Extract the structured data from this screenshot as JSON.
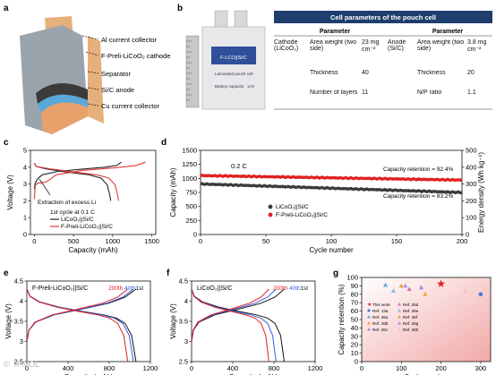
{
  "panel_a": {
    "label": "a",
    "callouts": [
      "Al current collector",
      "F-Preli-LiCoO₂ cathode",
      "Separator",
      "Si/C anode",
      "Cu current collector"
    ],
    "colors": {
      "case": "#9aa4ad",
      "cathode": "#3b3b3b",
      "separator": "#5aa8d8",
      "anode": "#e9a06a",
      "tab": "#e6b07c"
    }
  },
  "panel_b": {
    "label": "b",
    "cell_label_1": "F-LCO||Si/C",
    "cell_label_2": "Laminated pouch cell",
    "cell_label_3": "Battery capacity:",
    "cell_label_4": "1Ah",
    "table": {
      "title": "Cell parameters of the pouch cell",
      "headers": [
        "",
        "Parameter",
        "",
        "",
        "Parameter",
        ""
      ],
      "cathode": "Cathode (LiCoO₂)",
      "anode": "Anode (Si/C)",
      "rows": [
        {
          "p1": "Area weight (two side)",
          "v1": "23 mg cm⁻²",
          "p2": "Area weight (two side)",
          "v2": "3.8 mg cm⁻²"
        },
        {
          "p1": "Thickness",
          "v1": "40",
          "p2": "Thickness",
          "v2": "20"
        },
        {
          "p1": "Number of layers",
          "v1": "11",
          "p2": "N/P ratio",
          "v2": "1.1"
        }
      ]
    }
  },
  "chart_data": [
    {
      "panel": "c",
      "type": "line",
      "xlabel": "Capacity (mAh)",
      "ylabel": "Voltage (V)",
      "xlim": [
        -50,
        1550
      ],
      "ylim": [
        0,
        5
      ],
      "xticks": [
        0,
        500,
        1000,
        1500
      ],
      "yticks": [
        0,
        0.5,
        1,
        1.5,
        2,
        2.5,
        3,
        3.5,
        4,
        4.5,
        5
      ],
      "annotation": "Extraction of excess Li",
      "legend_title": "1st cycle at 0.1 C",
      "series": [
        {
          "name": "LiCoO₂||Si/C",
          "color": "#222222",
          "charge": [
            [
              0,
              2.7
            ],
            [
              10,
              3.05
            ],
            [
              40,
              3.3
            ],
            [
              100,
              3.55
            ],
            [
              300,
              3.75
            ],
            [
              600,
              3.88
            ],
            [
              900,
              4.0
            ],
            [
              1050,
              4.1
            ],
            [
              1110,
              4.3
            ]
          ],
          "discharge": [
            [
              0,
              4.25
            ],
            [
              20,
              4.05
            ],
            [
              150,
              3.9
            ],
            [
              400,
              3.72
            ],
            [
              700,
              3.55
            ],
            [
              850,
              3.35
            ],
            [
              930,
              2.95
            ],
            [
              965,
              2.3
            ],
            [
              975,
              2.0
            ]
          ]
        },
        {
          "name": "F-Preli-LiCoO₂||Si/C",
          "color": "#e23b3b",
          "charge": [
            [
              0,
              2.1
            ],
            [
              10,
              2.9
            ],
            [
              40,
              3.05
            ],
            [
              100,
              3.08
            ],
            [
              150,
              3.12
            ],
            [
              190,
              3.25
            ],
            [
              280,
              3.55
            ],
            [
              600,
              3.8
            ],
            [
              1000,
              3.95
            ],
            [
              1300,
              4.1
            ],
            [
              1420,
              4.3
            ]
          ],
          "discharge": [
            [
              0,
              4.25
            ],
            [
              20,
              4.05
            ],
            [
              200,
              3.9
            ],
            [
              500,
              3.72
            ],
            [
              800,
              3.55
            ],
            [
              950,
              3.35
            ],
            [
              1030,
              2.95
            ],
            [
              1065,
              2.3
            ],
            [
              1075,
              2.0
            ]
          ]
        }
      ]
    },
    {
      "panel": "d",
      "type": "scatter",
      "title": "0.2 C",
      "xlabel": "Cycle number",
      "ylabel": "Capacity (mAh)",
      "ylabel_right": "Energy density (Wh kg⁻¹)",
      "xlim": [
        0,
        200
      ],
      "ylim": [
        0,
        1500
      ],
      "ylim_right": [
        0,
        500
      ],
      "xticks": [
        0,
        50,
        100,
        150,
        200
      ],
      "yticks": [
        0,
        250,
        500,
        750,
        1000,
        1250,
        1500
      ],
      "yticks_right": [
        0,
        100,
        200,
        300,
        400,
        500
      ],
      "annotations": [
        "Capacity retention = 92.4%",
        "Capacity retention = 83.2%"
      ],
      "series": [
        {
          "name": "LiCoO₂||Si/C",
          "color": "#3a3a3a",
          "start": 900,
          "end": 749
        },
        {
          "name": "F-Preli-LiCoO₂||Si/C",
          "color": "#e02020",
          "start": 1050,
          "end": 970
        }
      ]
    },
    {
      "panel": "e",
      "type": "line",
      "title": "F-Preli-LiCoO₂||Si/C",
      "xlabel": "Capacity (mAh)",
      "ylabel": "Voltage (V)",
      "xlim": [
        0,
        1200
      ],
      "ylim": [
        2.5,
        4.5
      ],
      "xticks": [
        0,
        400,
        800,
        1200
      ],
      "yticks": [
        2.5,
        2.75,
        3,
        3.25,
        3.5,
        3.75,
        4,
        4.25,
        4.5
      ],
      "cycle_labels": [
        "200th",
        "40th",
        "1st"
      ],
      "series": [
        {
          "name": "1st",
          "color": "#111111",
          "cap": 1060
        },
        {
          "name": "40th",
          "color": "#3a5be0",
          "cap": 1035
        },
        {
          "name": "200th",
          "color": "#e02020",
          "cap": 980
        }
      ]
    },
    {
      "panel": "f",
      "type": "line",
      "title": "LiCoO₂||Si/C",
      "xlabel": "Capacity (mAh)",
      "ylabel": "Voltage (V)",
      "xlim": [
        0,
        1200
      ],
      "ylim": [
        2.5,
        4.5
      ],
      "xticks": [
        0,
        400,
        800,
        1200
      ],
      "yticks": [
        2.5,
        2.75,
        3,
        3.25,
        3.5,
        3.75,
        4,
        4.25,
        4.5
      ],
      "cycle_labels": [
        "200th",
        "40th",
        "1st"
      ],
      "series": [
        {
          "name": "1st",
          "color": "#111111",
          "cap": 900
        },
        {
          "name": "40th",
          "color": "#3a5be0",
          "cap": 820
        },
        {
          "name": "200th",
          "color": "#e02020",
          "cap": 750
        }
      ]
    },
    {
      "panel": "g",
      "type": "scatter",
      "xlabel": "Cycle number",
      "ylabel": "Capacity retention (%)",
      "xlim": [
        0,
        325
      ],
      "ylim": [
        0,
        100
      ],
      "xticks": [
        0,
        100,
        200,
        300
      ],
      "yticks": [
        0,
        10,
        20,
        30,
        40,
        50,
        60,
        70,
        80,
        90,
        100
      ],
      "series": [
        {
          "name": "This work",
          "color": "#e02020",
          "marker": "star",
          "x": 200,
          "y": 92.4
        },
        {
          "name": "Ref. 13a",
          "color": "#4a78d6",
          "marker": "circle",
          "x": 300,
          "y": 80
        },
        {
          "name": "Ref. 26a",
          "color": "#5aa8e8",
          "marker": "triangle",
          "x": 60,
          "y": 91
        },
        {
          "name": "Ref. 26b",
          "color": "#e8a040",
          "marker": "triangle",
          "x": 100,
          "y": 90
        },
        {
          "name": "Ref. 26c",
          "color": "#a08ad8",
          "marker": "triangle",
          "x": 150,
          "y": 88
        },
        {
          "name": "Ref. 26d",
          "color": "#d870b0",
          "marker": "triangle",
          "x": 120,
          "y": 86
        },
        {
          "name": "Ref. 26e",
          "color": "#7fc0e8",
          "marker": "triangle",
          "x": 80,
          "y": 84
        },
        {
          "name": "Ref. 26f",
          "color": "#f0a040",
          "marker": "triangle",
          "x": 160,
          "y": 80
        },
        {
          "name": "Ref. 26g",
          "color": "#b090e0",
          "marker": "triangle",
          "x": 110,
          "y": 90
        },
        {
          "name": "Ref. 26h",
          "color": "#f0c0d0",
          "marker": "triangle",
          "x": 260,
          "y": 84
        }
      ]
    }
  ],
  "watermark": "©  X-MOL"
}
